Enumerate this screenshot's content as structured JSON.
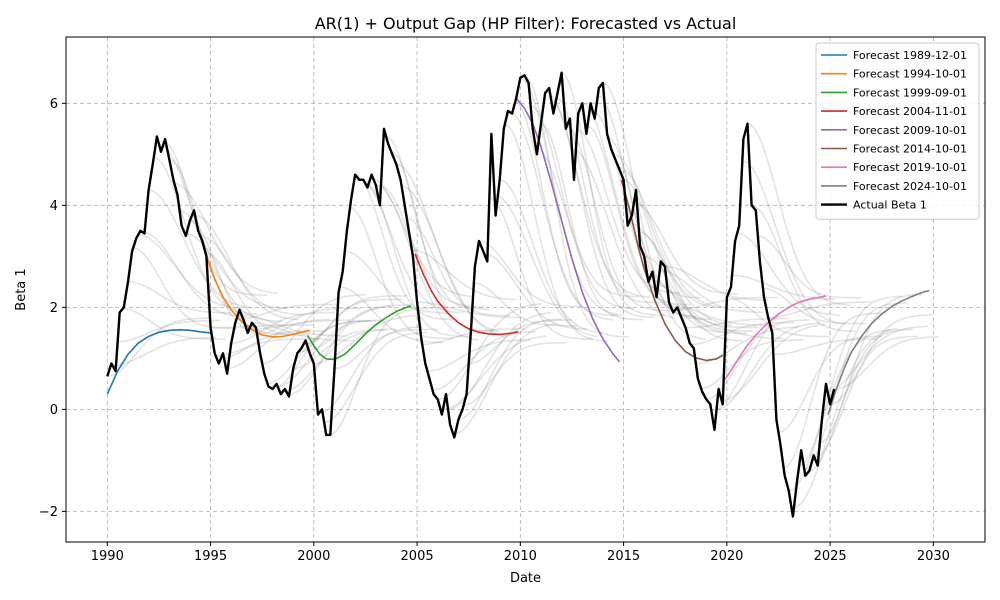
{
  "chart_data": {
    "type": "line",
    "title": "AR(1) + Output Gap (HP Filter): Forecasted vs Actual",
    "xlabel": "Date",
    "ylabel": "Beta 1",
    "xlim": [
      1988.0,
      2032.5
    ],
    "ylim": [
      -2.6,
      7.3
    ],
    "x_ticks": [
      1990,
      1995,
      2000,
      2005,
      2010,
      2015,
      2020,
      2025,
      2030
    ],
    "x_tick_labels": [
      "1990",
      "1995",
      "2000",
      "2005",
      "2010",
      "2015",
      "2020",
      "2025",
      "2030"
    ],
    "y_ticks": [
      -2,
      0,
      2,
      4,
      6
    ],
    "y_tick_labels": [
      "−2",
      "0",
      "2",
      "4",
      "6"
    ],
    "grid": true,
    "grid_style": "dashed",
    "legend_position": "top-right",
    "series": [
      {
        "name": "Forecast 1989-12-01",
        "color": "#1f77b4",
        "x": [
          1990.0,
          1990.5,
          1991.0,
          1991.5,
          1992.0,
          1992.5,
          1993.0,
          1993.5,
          1994.0,
          1994.5,
          1995.0
        ],
        "y": [
          0.3,
          0.75,
          1.08,
          1.3,
          1.43,
          1.51,
          1.55,
          1.56,
          1.55,
          1.52,
          1.5
        ]
      },
      {
        "name": "Forecast 1994-10-01",
        "color": "#ff7f0e",
        "x": [
          1994.8,
          1995.2,
          1995.6,
          1996.0,
          1996.5,
          1997.0,
          1997.5,
          1998.0,
          1998.5,
          1999.0,
          1999.5,
          1999.8
        ],
        "y": [
          3.0,
          2.55,
          2.2,
          1.95,
          1.72,
          1.56,
          1.46,
          1.42,
          1.43,
          1.47,
          1.52,
          1.55
        ]
      },
      {
        "name": "Forecast 1999-09-01",
        "color": "#2ca02c",
        "x": [
          1999.7,
          2000.0,
          2000.3,
          2000.6,
          2001.0,
          2001.5,
          2002.0,
          2002.5,
          2003.0,
          2003.5,
          2004.0,
          2004.7
        ],
        "y": [
          1.45,
          1.25,
          1.08,
          0.99,
          0.98,
          1.08,
          1.27,
          1.48,
          1.66,
          1.8,
          1.92,
          2.03
        ]
      },
      {
        "name": "Forecast 2004-11-01",
        "color": "#d62728",
        "x": [
          2004.9,
          2005.3,
          2005.7,
          2006.0,
          2006.5,
          2007.0,
          2007.5,
          2008.0,
          2008.5,
          2009.0,
          2009.5,
          2009.9
        ],
        "y": [
          3.05,
          2.65,
          2.32,
          2.12,
          1.88,
          1.7,
          1.58,
          1.51,
          1.48,
          1.47,
          1.49,
          1.52
        ]
      },
      {
        "name": "Forecast 2009-10-01",
        "color": "#9467bd",
        "x": [
          2009.8,
          2010.2,
          2010.6,
          2011.0,
          2011.5,
          2012.0,
          2012.5,
          2013.0,
          2013.5,
          2014.0,
          2014.5,
          2014.8
        ],
        "y": [
          6.1,
          5.9,
          5.6,
          5.15,
          4.45,
          3.7,
          2.95,
          2.3,
          1.78,
          1.38,
          1.08,
          0.93
        ]
      },
      {
        "name": "Forecast 2014-10-01",
        "color": "#8c564b",
        "x": [
          2014.9,
          2015.3,
          2015.7,
          2016.0,
          2016.5,
          2017.0,
          2017.5,
          2018.0,
          2018.5,
          2019.0,
          2019.5,
          2019.8
        ],
        "y": [
          4.5,
          3.9,
          3.2,
          2.75,
          2.15,
          1.68,
          1.35,
          1.13,
          1.01,
          0.96,
          0.99,
          1.06
        ]
      },
      {
        "name": "Forecast 2019-10-01",
        "color": "#e377c2",
        "x": [
          2019.9,
          2020.3,
          2020.7,
          2021.0,
          2021.5,
          2022.0,
          2022.5,
          2023.0,
          2023.5,
          2024.0,
          2024.5,
          2024.8
        ],
        "y": [
          0.58,
          0.82,
          1.08,
          1.26,
          1.5,
          1.7,
          1.87,
          2.0,
          2.1,
          2.16,
          2.2,
          2.22
        ]
      },
      {
        "name": "Forecast 2024-10-01",
        "color": "#7f7f7f",
        "x": [
          2024.9,
          2025.3,
          2025.7,
          2026.0,
          2026.5,
          2027.0,
          2027.5,
          2028.0,
          2028.5,
          2029.0,
          2029.5,
          2029.8
        ],
        "y": [
          -0.1,
          0.4,
          0.82,
          1.1,
          1.42,
          1.68,
          1.87,
          2.02,
          2.13,
          2.22,
          2.3,
          2.33
        ]
      },
      {
        "name": "Actual Beta 1",
        "color": "#000000",
        "x": [
          1990.0,
          1990.2,
          1990.4,
          1990.6,
          1990.8,
          1991.0,
          1991.2,
          1991.4,
          1991.6,
          1991.8,
          1992.0,
          1992.2,
          1992.4,
          1992.6,
          1992.8,
          1993.0,
          1993.2,
          1993.4,
          1993.6,
          1993.8,
          1994.0,
          1994.2,
          1994.4,
          1994.6,
          1994.8,
          1995.0,
          1995.2,
          1995.4,
          1995.6,
          1995.8,
          1996.0,
          1996.2,
          1996.4,
          1996.6,
          1996.8,
          1997.0,
          1997.2,
          1997.4,
          1997.6,
          1997.8,
          1998.0,
          1998.2,
          1998.4,
          1998.6,
          1998.8,
          1999.0,
          1999.2,
          1999.4,
          1999.6,
          1999.8,
          2000.0,
          2000.2,
          2000.4,
          2000.6,
          2000.8,
          2001.0,
          2001.2,
          2001.4,
          2001.6,
          2001.8,
          2002.0,
          2002.2,
          2002.4,
          2002.6,
          2002.8,
          2003.0,
          2003.2,
          2003.4,
          2003.6,
          2003.8,
          2004.0,
          2004.2,
          2004.4,
          2004.6,
          2004.8,
          2005.0,
          2005.2,
          2005.4,
          2005.6,
          2005.8,
          2006.0,
          2006.2,
          2006.4,
          2006.6,
          2006.8,
          2007.0,
          2007.2,
          2007.4,
          2007.6,
          2007.8,
          2008.0,
          2008.2,
          2008.4,
          2008.6,
          2008.8,
          2009.0,
          2009.2,
          2009.4,
          2009.6,
          2009.8,
          2010.0,
          2010.2,
          2010.4,
          2010.6,
          2010.8,
          2011.0,
          2011.2,
          2011.4,
          2011.6,
          2011.8,
          2012.0,
          2012.2,
          2012.4,
          2012.6,
          2012.8,
          2013.0,
          2013.2,
          2013.4,
          2013.6,
          2013.8,
          2014.0,
          2014.2,
          2014.4,
          2014.6,
          2014.8,
          2015.0,
          2015.2,
          2015.4,
          2015.6,
          2015.8,
          2016.0,
          2016.2,
          2016.4,
          2016.6,
          2016.8,
          2017.0,
          2017.2,
          2017.4,
          2017.6,
          2017.8,
          2018.0,
          2018.2,
          2018.4,
          2018.6,
          2018.8,
          2019.0,
          2019.2,
          2019.4,
          2019.6,
          2019.8,
          2020.0,
          2020.2,
          2020.4,
          2020.6,
          2020.8,
          2021.0,
          2021.2,
          2021.4,
          2021.6,
          2021.8,
          2022.0,
          2022.2,
          2022.4,
          2022.6,
          2022.8,
          2023.0,
          2023.2,
          2023.4,
          2023.6,
          2023.8,
          2024.0,
          2024.2,
          2024.4,
          2024.6,
          2024.8,
          2025.0,
          2025.2
        ],
        "y": [
          0.65,
          0.9,
          0.75,
          1.9,
          2.0,
          2.5,
          3.1,
          3.35,
          3.5,
          3.45,
          4.3,
          4.8,
          5.35,
          5.05,
          5.3,
          4.9,
          4.5,
          4.2,
          3.6,
          3.4,
          3.7,
          3.9,
          3.5,
          3.3,
          3.0,
          1.6,
          1.1,
          0.9,
          1.1,
          0.7,
          1.3,
          1.7,
          1.95,
          1.75,
          1.5,
          1.7,
          1.6,
          1.1,
          0.7,
          0.45,
          0.4,
          0.5,
          0.3,
          0.4,
          0.25,
          0.8,
          1.1,
          1.2,
          1.35,
          1.1,
          0.9,
          -0.1,
          0.0,
          -0.5,
          -0.5,
          0.8,
          2.3,
          2.7,
          3.5,
          4.1,
          4.6,
          4.5,
          4.5,
          4.35,
          4.6,
          4.4,
          4.0,
          5.5,
          5.2,
          5.0,
          4.8,
          4.5,
          4.0,
          3.5,
          3.0,
          2.1,
          1.4,
          0.9,
          0.6,
          0.3,
          0.2,
          -0.1,
          0.3,
          -0.3,
          -0.55,
          -0.2,
          0.0,
          0.3,
          1.5,
          2.8,
          3.3,
          3.1,
          2.9,
          5.4,
          3.8,
          4.5,
          5.5,
          5.85,
          5.8,
          6.1,
          6.5,
          6.55,
          6.4,
          5.5,
          5.0,
          5.6,
          6.2,
          6.3,
          5.8,
          6.2,
          6.6,
          5.5,
          5.7,
          4.5,
          5.8,
          6.0,
          5.4,
          6.0,
          5.7,
          6.3,
          6.4,
          5.4,
          5.1,
          4.9,
          4.7,
          4.5,
          3.6,
          3.8,
          4.3,
          3.2,
          3.0,
          2.5,
          2.7,
          2.2,
          2.9,
          2.8,
          2.1,
          1.9,
          2.0,
          1.8,
          1.6,
          1.3,
          1.2,
          0.6,
          0.35,
          0.2,
          0.1,
          -0.4,
          0.4,
          0.1,
          2.2,
          2.4,
          3.3,
          3.6,
          5.3,
          5.6,
          4.0,
          3.9,
          2.9,
          2.2,
          1.8,
          1.5,
          -0.2,
          -0.7,
          -1.3,
          -1.6,
          -2.1,
          -1.4,
          -0.8,
          -1.3,
          -1.2,
          -0.9,
          -1.1,
          -0.2,
          0.5,
          0.1,
          0.4
        ]
      }
    ]
  }
}
